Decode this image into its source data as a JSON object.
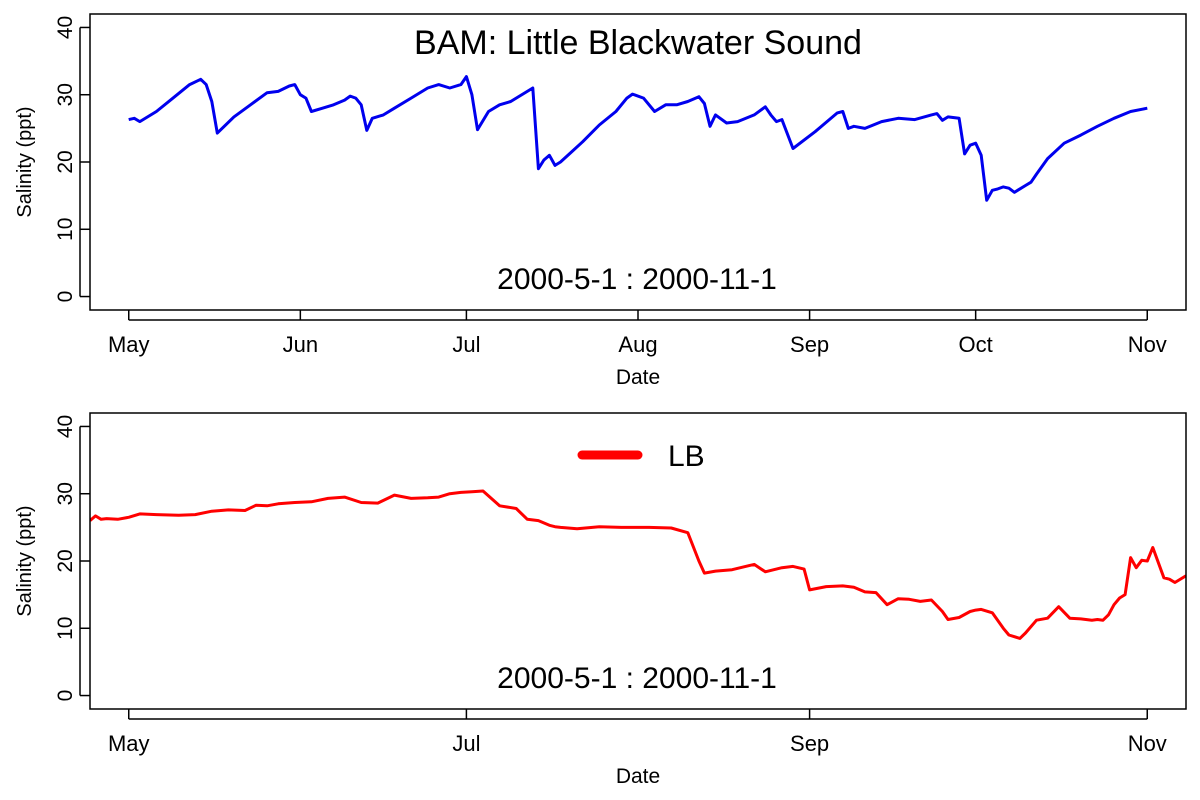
{
  "chart_data": [
    {
      "type": "line",
      "title": "BAM: Little Blackwater Sound",
      "annotation": "2000-5-1  :  2000-11-1",
      "xlabel": "Date",
      "ylabel": "Salinity (ppt)",
      "xlim": [
        "2000-04-24",
        "2000-11-08"
      ],
      "ylim": [
        -2,
        42
      ],
      "y_ticks": [
        "0",
        "10",
        "20",
        "30",
        "40"
      ],
      "x_ticks": [
        {
          "date": "2000-05-01",
          "label": "May"
        },
        {
          "date": "2000-06-01",
          "label": "Jun"
        },
        {
          "date": "2000-07-01",
          "label": "Jul"
        },
        {
          "date": "2000-08-01",
          "label": "Aug"
        },
        {
          "date": "2000-09-01",
          "label": "Sep"
        },
        {
          "date": "2000-10-01",
          "label": "Oct"
        },
        {
          "date": "2000-11-01",
          "label": "Nov"
        }
      ],
      "series": [
        {
          "color": "#0000ee",
          "x": [
            "2000-05-01",
            "2000-05-02",
            "2000-05-03",
            "2000-05-06",
            "2000-05-09",
            "2000-05-12",
            "2000-05-14",
            "2000-05-15",
            "2000-05-16",
            "2000-05-17",
            "2000-05-20",
            "2000-05-23",
            "2000-05-26",
            "2000-05-28",
            "2000-05-30",
            "2000-05-31",
            "2000-06-01",
            "2000-06-02",
            "2000-06-03",
            "2000-06-05",
            "2000-06-07",
            "2000-06-09",
            "2000-06-10",
            "2000-06-11",
            "2000-06-12",
            "2000-06-13",
            "2000-06-14",
            "2000-06-16",
            "2000-06-18",
            "2000-06-21",
            "2000-06-24",
            "2000-06-26",
            "2000-06-28",
            "2000-06-30",
            "2000-07-01",
            "2000-07-02",
            "2000-07-03",
            "2000-07-05",
            "2000-07-07",
            "2000-07-09",
            "2000-07-13",
            "2000-07-14",
            "2000-07-15",
            "2000-07-16",
            "2000-07-17",
            "2000-07-18",
            "2000-07-20",
            "2000-07-22",
            "2000-07-25",
            "2000-07-28",
            "2000-07-30",
            "2000-07-31",
            "2000-08-02",
            "2000-08-04",
            "2000-08-06",
            "2000-08-08",
            "2000-08-10",
            "2000-08-12",
            "2000-08-13",
            "2000-08-14",
            "2000-08-15",
            "2000-08-17",
            "2000-08-19",
            "2000-08-22",
            "2000-08-24",
            "2000-08-25",
            "2000-08-26",
            "2000-08-27",
            "2000-08-29",
            "2000-09-02",
            "2000-09-06",
            "2000-09-07",
            "2000-09-08",
            "2000-09-09",
            "2000-09-11",
            "2000-09-14",
            "2000-09-17",
            "2000-09-20",
            "2000-09-23",
            "2000-09-24",
            "2000-09-25",
            "2000-09-26",
            "2000-09-28",
            "2000-09-29",
            "2000-09-30",
            "2000-10-01",
            "2000-10-02",
            "2000-10-03",
            "2000-10-04",
            "2000-10-05",
            "2000-10-06",
            "2000-10-07",
            "2000-10-08",
            "2000-10-10",
            "2000-10-11",
            "2000-10-12",
            "2000-10-14",
            "2000-10-17",
            "2000-10-20",
            "2000-10-23",
            "2000-10-26",
            "2000-10-29",
            "2000-11-01"
          ],
          "y": [
            26.3,
            26.5,
            26.0,
            27.5,
            29.5,
            31.5,
            32.3,
            31.5,
            29.0,
            24.3,
            26.7,
            28.5,
            30.3,
            30.5,
            31.3,
            31.5,
            30.0,
            29.5,
            27.5,
            28.0,
            28.5,
            29.2,
            29.8,
            29.5,
            28.5,
            24.7,
            26.5,
            27.0,
            28.0,
            29.5,
            31.0,
            31.5,
            31.0,
            31.5,
            32.7,
            30.0,
            24.8,
            27.5,
            28.5,
            29.0,
            31.0,
            19.0,
            20.3,
            21.0,
            19.5,
            20.0,
            21.5,
            23.0,
            25.5,
            27.5,
            29.5,
            30.1,
            29.5,
            27.5,
            28.5,
            28.5,
            29.0,
            29.7,
            28.7,
            25.3,
            27.0,
            25.8,
            26.0,
            27.0,
            28.2,
            27.0,
            26.0,
            26.3,
            22.0,
            24.5,
            27.3,
            27.5,
            25.0,
            25.3,
            25.0,
            26.0,
            26.5,
            26.3,
            27.0,
            27.2,
            26.2,
            26.7,
            26.5,
            21.2,
            22.5,
            22.8,
            21.0,
            14.3,
            15.8,
            16.0,
            16.3,
            16.1,
            15.5,
            16.5,
            17.0,
            18.2,
            20.5,
            22.8,
            24.0,
            25.3,
            26.5,
            27.5,
            28.0
          ]
        }
      ]
    },
    {
      "type": "line",
      "title": "",
      "annotation": "2000-5-1  :  2000-11-1",
      "xlabel": "Date",
      "ylabel": "Salinity (ppt)",
      "xlim": [
        "2000-04-24",
        "2000-11-08"
      ],
      "ylim": [
        -2,
        42
      ],
      "y_ticks": [
        "0",
        "10",
        "20",
        "30",
        "40"
      ],
      "x_ticks": [
        {
          "date": "2000-05-01",
          "label": "May"
        },
        {
          "date": "2000-07-01",
          "label": "Jul"
        },
        {
          "date": "2000-09-01",
          "label": "Sep"
        },
        {
          "date": "2000-11-01",
          "label": "Nov"
        }
      ],
      "legend": {
        "position": "top-center",
        "entries": [
          "LB"
        ]
      },
      "series": [
        {
          "name": "LB",
          "color": "#ff0000",
          "x": [
            "2000-04-24",
            "2000-04-25",
            "2000-04-26",
            "2000-04-27",
            "2000-04-29",
            "2000-05-01",
            "2000-05-03",
            "2000-05-06",
            "2000-05-10",
            "2000-05-13",
            "2000-05-16",
            "2000-05-19",
            "2000-05-22",
            "2000-05-24",
            "2000-05-26",
            "2000-05-28",
            "2000-05-31",
            "2000-06-03",
            "2000-06-06",
            "2000-06-09",
            "2000-06-12",
            "2000-06-15",
            "2000-06-18",
            "2000-06-21",
            "2000-06-24",
            "2000-06-26",
            "2000-06-28",
            "2000-06-30",
            "2000-07-02",
            "2000-07-04",
            "2000-07-07",
            "2000-07-10",
            "2000-07-12",
            "2000-07-14",
            "2000-07-16",
            "2000-07-17",
            "2000-07-18",
            "2000-07-21",
            "2000-07-25",
            "2000-07-29",
            "2000-08-03",
            "2000-08-07",
            "2000-08-10",
            "2000-08-12",
            "2000-08-13",
            "2000-08-15",
            "2000-08-18",
            "2000-08-21",
            "2000-08-22",
            "2000-08-24",
            "2000-08-27",
            "2000-08-29",
            "2000-08-31",
            "2000-09-01",
            "2000-09-04",
            "2000-09-07",
            "2000-09-09",
            "2000-09-11",
            "2000-09-13",
            "2000-09-15",
            "2000-09-17",
            "2000-09-19",
            "2000-09-21",
            "2000-09-23",
            "2000-09-25",
            "2000-09-26",
            "2000-09-28",
            "2000-09-30",
            "2000-10-01",
            "2000-10-02",
            "2000-10-04",
            "2000-10-06",
            "2000-10-07",
            "2000-10-09",
            "2000-10-10",
            "2000-10-12",
            "2000-10-14",
            "2000-10-16",
            "2000-10-18",
            "2000-10-20",
            "2000-10-22",
            "2000-10-23",
            "2000-10-24",
            "2000-10-25",
            "2000-10-26",
            "2000-10-27",
            "2000-10-28",
            "2000-10-29",
            "2000-10-30",
            "2000-10-31",
            "2000-11-01",
            "2000-11-02",
            "2000-11-04",
            "2000-11-05",
            "2000-11-06",
            "2000-11-08"
          ],
          "y": [
            26.0,
            26.7,
            26.2,
            26.3,
            26.2,
            26.5,
            27.0,
            26.9,
            26.8,
            26.9,
            27.4,
            27.6,
            27.5,
            28.3,
            28.2,
            28.5,
            28.7,
            28.8,
            29.3,
            29.5,
            28.7,
            28.6,
            29.8,
            29.3,
            29.4,
            29.5,
            30.0,
            30.2,
            30.3,
            30.4,
            28.2,
            27.8,
            26.2,
            26.0,
            25.3,
            25.1,
            25.0,
            24.8,
            25.1,
            25.0,
            25.0,
            24.9,
            24.2,
            20.0,
            18.2,
            18.5,
            18.7,
            19.3,
            19.5,
            18.4,
            19.0,
            19.2,
            18.8,
            15.7,
            16.2,
            16.3,
            16.1,
            15.4,
            15.3,
            13.5,
            14.4,
            14.3,
            14.0,
            14.2,
            12.5,
            11.3,
            11.6,
            12.5,
            12.7,
            12.8,
            12.3,
            10.0,
            9.0,
            8.5,
            9.3,
            11.2,
            11.5,
            13.2,
            11.5,
            11.4,
            11.2,
            11.3,
            11.2,
            12.0,
            13.5,
            14.5,
            15.0,
            20.5,
            19.0,
            20.1,
            20.0,
            22.0,
            17.5,
            17.3,
            16.8,
            17.8
          ]
        }
      ]
    }
  ]
}
